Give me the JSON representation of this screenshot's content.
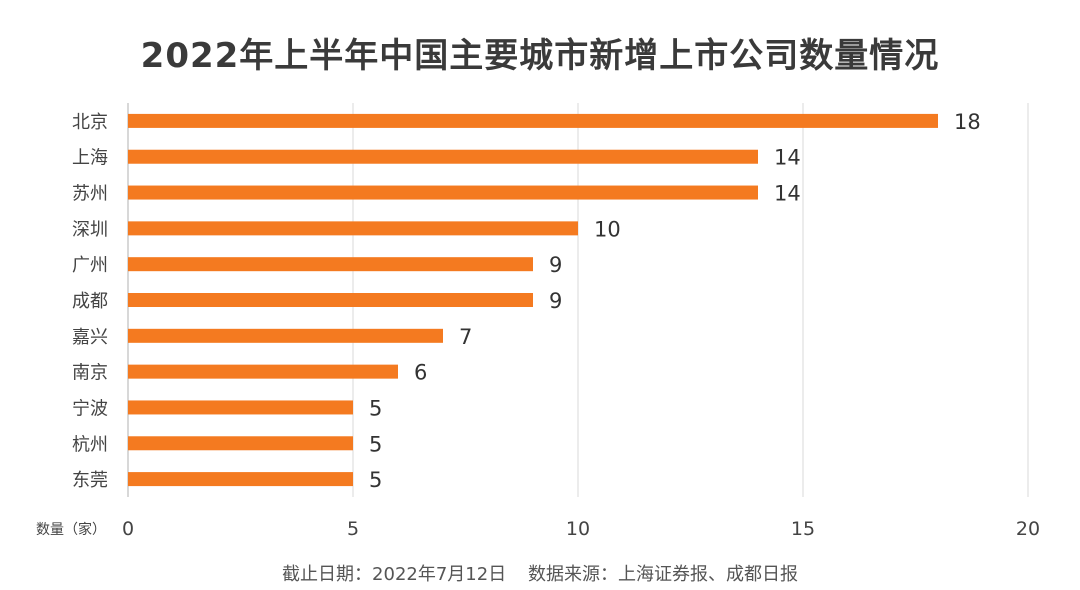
{
  "chart_data": {
    "type": "bar",
    "orientation": "horizontal",
    "title": "2022年上半年中国主要城市新增上市公司数量情况",
    "categories": [
      "北京",
      "上海",
      "苏州",
      "深圳",
      "广州",
      "成都",
      "嘉兴",
      "南京",
      "宁波",
      "杭州",
      "东莞"
    ],
    "values": [
      18,
      14,
      14,
      10,
      9,
      9,
      7,
      6,
      5,
      5,
      5
    ],
    "xlabel": "数量（家）",
    "xlim": [
      0,
      20
    ],
    "xticks": [
      0,
      5,
      10,
      15,
      20
    ],
    "grid": "vertical",
    "bar_color": "#f47a20"
  },
  "footnote": {
    "date": "截止日期：2022年7月12日",
    "source": "数据来源：上海证券报、成都日报"
  }
}
